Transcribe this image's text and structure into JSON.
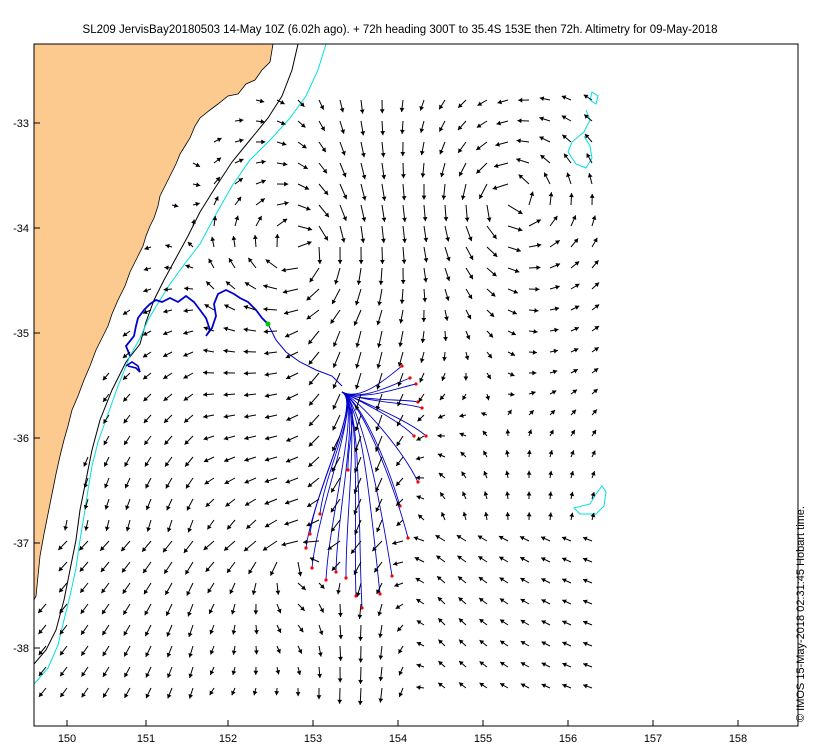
{
  "title": "SL209 JervisBay20180503 14-May 10Z (6.02h ago). + 72h heading 300T to 35.4S 153E then 72h. Altimetry for 09-May-2018",
  "credit": "© IMOS 15-May-2018 02:31:45 Hobart time.",
  "map": {
    "lon_range": [
      149.8,
      158.7
    ],
    "lat_range": [
      -38.85,
      -32.3
    ],
    "lon_ticks": [
      "150",
      "151",
      "152",
      "153",
      "154",
      "155",
      "156",
      "157",
      "158"
    ],
    "lat_ticks": [
      "-33",
      "-34",
      "-35",
      "-36",
      "-37",
      "-38"
    ],
    "colors": {
      "land": "#fcc98f",
      "coast": "#000000",
      "isobath_1000": "#000000",
      "isobath_200": "#00e0e0",
      "glider_track": "#0000cc",
      "glider_position": "#00c800",
      "forecast_tracks": "#0000cc",
      "forecast_endpoints": "#ff0000",
      "current_vectors": "#000000"
    }
  }
}
